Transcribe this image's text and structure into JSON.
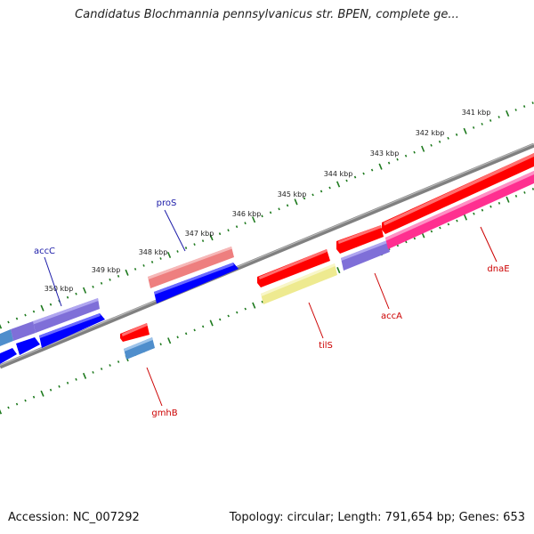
{
  "title": "Candidatus Blochmannia pennsylvanicus str. BPEN, complete ge...",
  "footer": {
    "accession": "Accession: NC_007292",
    "stats": "Topology: circular; Length: 791,654 bp; Genes: 653"
  },
  "ruler_labels": [
    "341 kbp",
    "342 kbp",
    "343 kbp",
    "344 kbp",
    "345 kbp",
    "346 kbp",
    "347 kbp",
    "348 kbp",
    "349 kbp",
    "350 kbp"
  ],
  "gene_labels": {
    "accC": "accC",
    "proS": "proS",
    "gmhB": "gmhB",
    "tilS": "tilS",
    "accA": "accA",
    "dnaE": "dnaE"
  },
  "colors": {
    "backbone": "#808080",
    "tick": "#1e7a1e",
    "label_blue": "#1a1aa8",
    "label_red": "#cc0000",
    "red": "#ff0000",
    "blue": "#0000ff",
    "violet": "#7f6fd8",
    "pink": "#ff4fa0",
    "salmon": "#ee7f7f",
    "khaki": "#eeea90",
    "steel": "#4f8ecc"
  }
}
